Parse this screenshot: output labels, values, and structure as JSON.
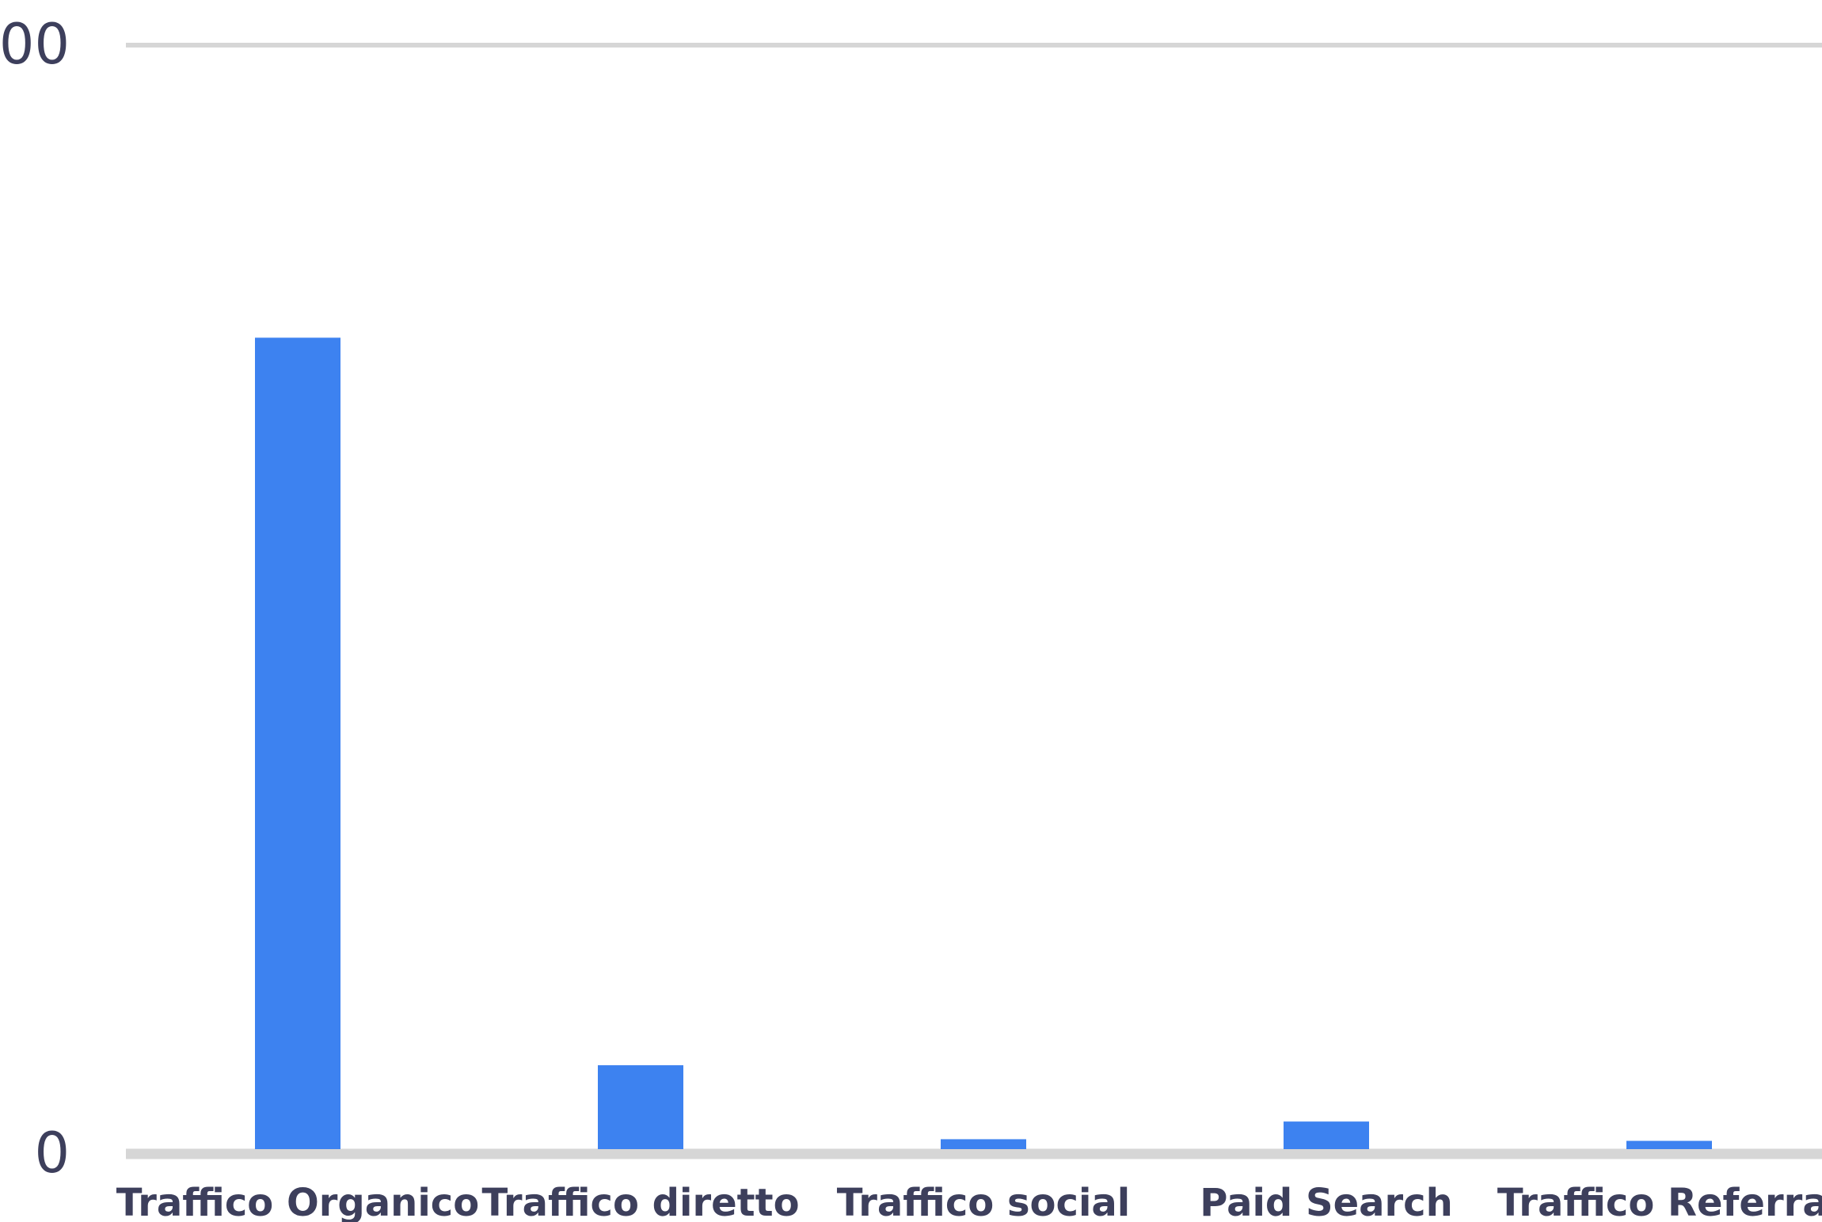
{
  "chart_data": {
    "type": "bar",
    "title": "",
    "xlabel": "",
    "ylabel": "",
    "categories": [
      "Traffico Organico",
      "Traffico diretto",
      "Traffico social",
      "Paid Search",
      "Traffico Referral"
    ],
    "values": [
      1470,
      152,
      18,
      50,
      15
    ],
    "ylim": [
      0,
      2000
    ],
    "y_tick_labels": [
      "0",
      "00"
    ],
    "grid": true,
    "bar_color": "#3d82f0",
    "grid_color": "#d6d6d6",
    "text_color": "#3d3f5c"
  }
}
